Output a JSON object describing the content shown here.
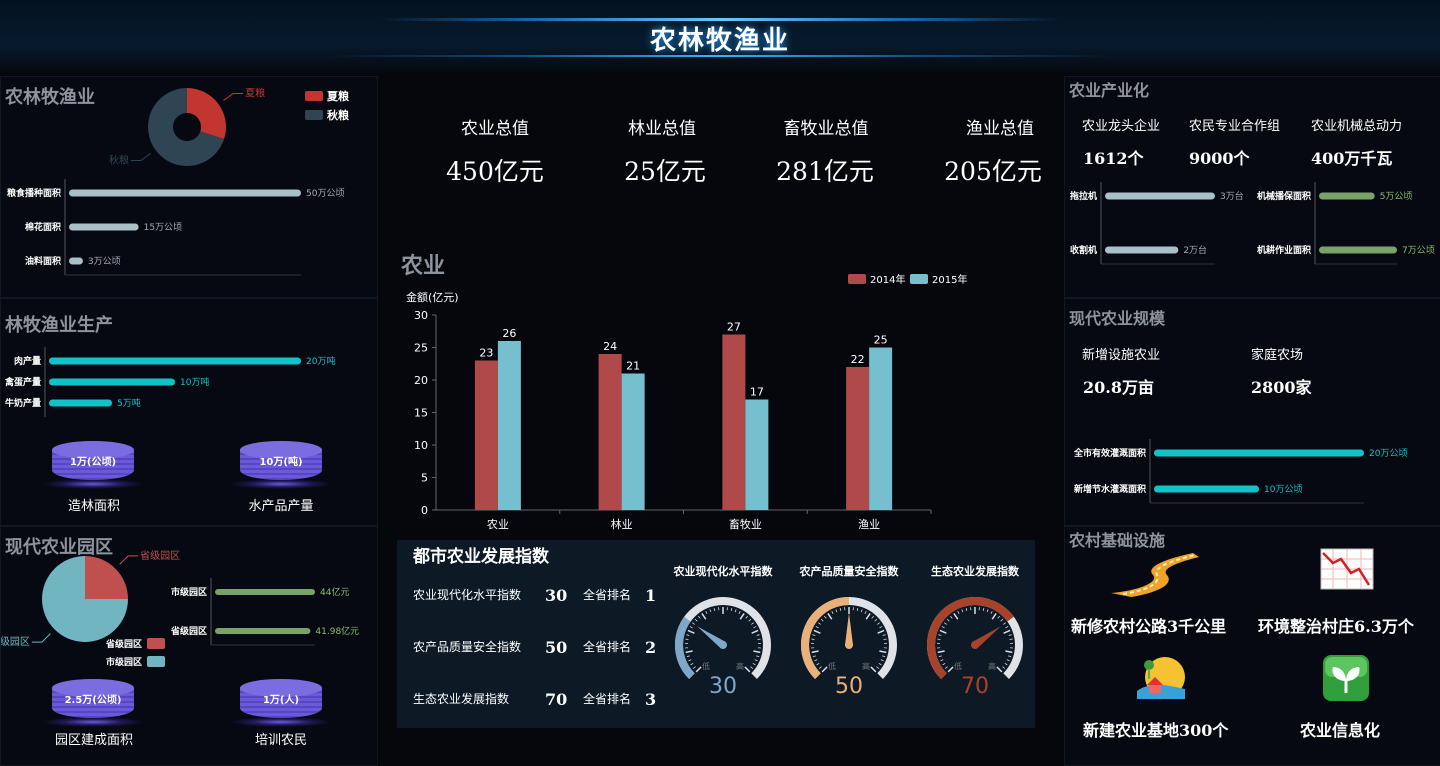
{
  "header": {
    "title": "农林牧渔业"
  },
  "left1": {
    "title": "农林牧渔业",
    "pie": {
      "slices": [
        {
          "name": "夏粮",
          "value": 30,
          "color": "#c23531"
        },
        {
          "name": "秋粮",
          "value": 70,
          "color": "#2f4554"
        }
      ]
    },
    "legend": [
      "夏粮",
      "秋粮"
    ],
    "bars": [
      {
        "label": "粮食播种面积",
        "value": 50,
        "value_label": "50万公顷"
      },
      {
        "label": "棉花面积",
        "value": 15,
        "value_label": "15万公顷"
      },
      {
        "label": "油料面积",
        "value": 3,
        "value_label": "3万公顷"
      }
    ],
    "bar_color": "#a9c0c8"
  },
  "left2": {
    "title": "林牧渔业生产",
    "bars": [
      {
        "label": "肉产量",
        "value": 20,
        "value_label": "20万吨"
      },
      {
        "label": "禽蛋产量",
        "value": 10,
        "value_label": "10万吨"
      },
      {
        "label": "牛奶产量",
        "value": 5,
        "value_label": "5万吨"
      }
    ],
    "bar_color": "#12c2c9",
    "stacks": [
      {
        "value": "1万(公顷)",
        "caption": "造林面积"
      },
      {
        "value": "10万(吨)",
        "caption": "水产品产量"
      }
    ]
  },
  "left3": {
    "title": "现代农业园区",
    "pie": {
      "slices": [
        {
          "name": "省级园区",
          "value": 25,
          "color": "#c05050"
        },
        {
          "name": "市级园区",
          "value": 75,
          "color": "#70b5bf"
        }
      ]
    },
    "legend": [
      "省级园区",
      "市级园区"
    ],
    "bars": [
      {
        "label": "市级园区",
        "value": 44,
        "value_label": "44亿元"
      },
      {
        "label": "省级园区",
        "value": 41.98,
        "value_label": "41.98亿元"
      }
    ],
    "bar_color": "#7aa36a",
    "stacks": [
      {
        "value": "2.5万(公顷)",
        "caption": "园区建成面积"
      },
      {
        "value": "1万(人)",
        "caption": "培训农民"
      }
    ]
  },
  "totals": [
    {
      "label": "农业总值",
      "value": "450亿元"
    },
    {
      "label": "林业总值",
      "value": "25亿元"
    },
    {
      "label": "畜牧业总值",
      "value": "281亿元"
    },
    {
      "label": "渔业总值",
      "value": "205亿元"
    }
  ],
  "chart_data": {
    "type": "bar",
    "title": "农业",
    "ylabel": "金额(亿元)",
    "categories": [
      "农业",
      "林业",
      "畜牧业",
      "渔业"
    ],
    "series": [
      {
        "name": "2014年",
        "values": [
          23,
          24,
          27,
          22
        ],
        "color": "#b04a4a"
      },
      {
        "name": "2015年",
        "values": [
          26,
          21,
          17,
          25
        ],
        "color": "#76bfcf"
      }
    ],
    "ylim": [
      0,
      30
    ],
    "yticks": [
      0,
      5,
      10,
      15,
      20,
      25,
      30
    ],
    "legend_position": "top-right"
  },
  "urban": {
    "title": "都市农业发展指数",
    "rows": [
      {
        "label": "农业现代化水平指数",
        "value": "30",
        "rank_label": "全省排名",
        "rank": "1"
      },
      {
        "label": "农产品质量安全指数",
        "value": "50",
        "rank_label": "全省排名",
        "rank": "2"
      },
      {
        "label": "生态农业发展指数",
        "value": "70",
        "rank_label": "全省排名",
        "rank": "3"
      }
    ],
    "gauges": [
      {
        "title": "农业现代化水平指数",
        "value": 30,
        "display": "30",
        "color": "#7fa7c9",
        "low": "低",
        "high": "高"
      },
      {
        "title": "农产品质量安全指数",
        "value": 50,
        "display": "50",
        "color": "#e8b07a",
        "low": "低",
        "high": "高"
      },
      {
        "title": "生态农业发展指数",
        "value": 70,
        "display": "70",
        "color": "#a7432b",
        "low": "低",
        "high": "高"
      }
    ]
  },
  "right1": {
    "title": "农业产业化",
    "stats": [
      {
        "label": "农业龙头企业",
        "value": "1612个"
      },
      {
        "label": "农民专业合作组",
        "value": "9000个"
      },
      {
        "label": "农业机械总动力",
        "value": "400万千瓦"
      }
    ],
    "bars_a": [
      {
        "label": "拖拉机",
        "value": 3,
        "value_label": "3万台"
      },
      {
        "label": "收割机",
        "value": 2,
        "value_label": "2万台"
      }
    ],
    "bars_b": [
      {
        "label": "机械播保面积",
        "value": 5,
        "value_label": "5万公顷"
      },
      {
        "label": "机耕作业面积",
        "value": 7,
        "value_label": "7万公顷"
      }
    ],
    "color_a": "#a9c0c8",
    "color_b": "#7aa36a"
  },
  "right2": {
    "title": "现代农业规模",
    "stats": [
      {
        "label": "新增设施农业",
        "value": "20.8万亩"
      },
      {
        "label": "家庭农场",
        "value": "2800家"
      }
    ],
    "bars": [
      {
        "label": "全市有效灌溉面积",
        "value": 20,
        "value_label": "20万公顷"
      },
      {
        "label": "新增节水灌溉面积",
        "value": 10,
        "value_label": "10万公顷"
      }
    ],
    "bar_color": "#12c2c9"
  },
  "right3": {
    "title": "农村基础设施",
    "items": [
      {
        "icon": "road-icon",
        "label": "新修农村公路3千公里"
      },
      {
        "icon": "chart-decline-icon",
        "label": "环境整治村庄6.3万个"
      },
      {
        "icon": "farm-base-icon",
        "label": "新建农业基地300个"
      },
      {
        "icon": "sprout-icon",
        "label": "农业信息化"
      }
    ]
  }
}
